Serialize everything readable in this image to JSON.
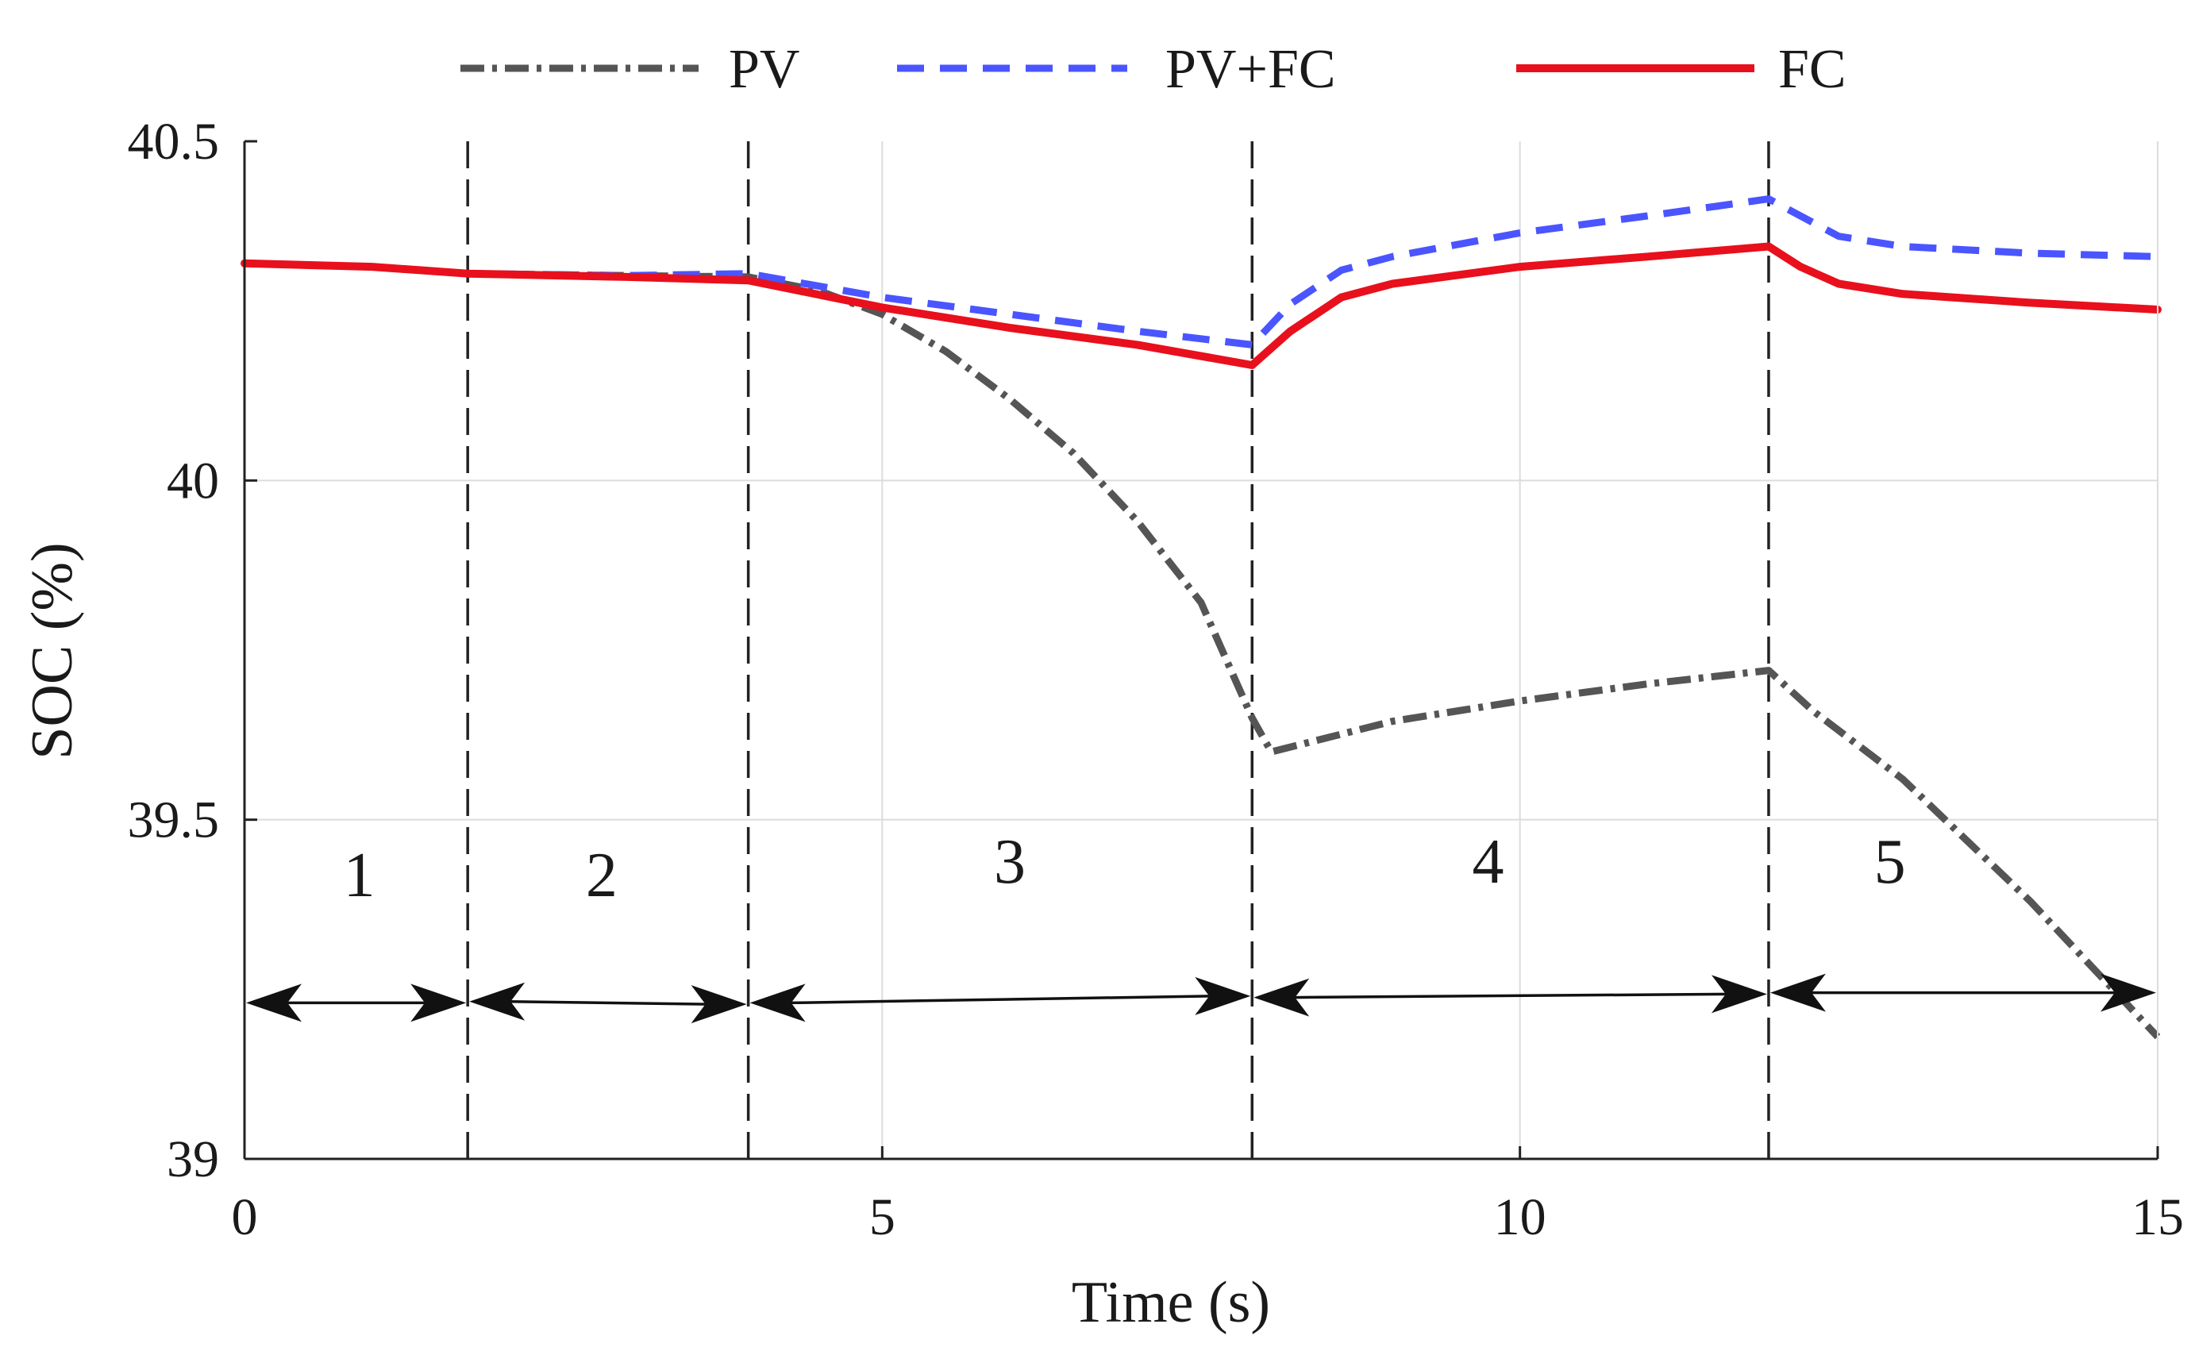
{
  "chart_data": {
    "type": "line",
    "title": "",
    "xlabel": "Time (s)",
    "ylabel": "SOC (%)",
    "xlim": [
      0,
      15
    ],
    "ylim": [
      39,
      40.5
    ],
    "xticks": [
      0,
      5,
      10,
      15
    ],
    "xtick_labels": [
      "0",
      "5",
      "10",
      "15"
    ],
    "yticks": [
      39,
      39.5,
      40,
      40.5
    ],
    "ytick_labels": [
      "39",
      "39.5",
      "40",
      "40.5"
    ],
    "grid": true,
    "legend_position": "top",
    "series": [
      {
        "name": "PV",
        "style": "dash-dot",
        "color": "#555555",
        "x": [
          0,
          1,
          1.75,
          3,
          3.95,
          4.5,
          5,
          5.5,
          6,
          6.5,
          7,
          7.5,
          7.9,
          8.05,
          9,
          10,
          11,
          11.95,
          12.3,
          13,
          14,
          15
        ],
        "y": [
          40.32,
          40.315,
          40.305,
          40.302,
          40.3,
          40.28,
          40.245,
          40.19,
          40.12,
          40.04,
          39.94,
          39.82,
          39.65,
          39.6,
          39.645,
          39.675,
          39.7,
          39.72,
          39.66,
          39.56,
          39.38,
          39.18
        ]
      },
      {
        "name": "PV+FC",
        "style": "dashed",
        "color": "#4a55ff",
        "x": [
          0,
          1,
          1.75,
          3,
          3.95,
          5,
          6,
          7,
          7.9,
          8.2,
          8.6,
          9,
          10,
          11,
          11.95,
          12.2,
          12.5,
          13,
          14,
          15
        ],
        "y": [
          40.32,
          40.315,
          40.305,
          40.302,
          40.305,
          40.27,
          40.245,
          40.22,
          40.2,
          40.26,
          40.31,
          40.33,
          40.365,
          40.39,
          40.415,
          40.39,
          40.36,
          40.345,
          40.335,
          40.33
        ]
      },
      {
        "name": "FC",
        "style": "solid",
        "color": "#e8101c",
        "x": [
          0,
          1,
          1.75,
          3,
          3.95,
          5,
          6,
          7,
          7.9,
          8.2,
          8.6,
          9,
          10,
          11,
          11.95,
          12.2,
          12.5,
          13,
          14,
          15
        ],
        "y": [
          40.32,
          40.315,
          40.305,
          40.3,
          40.295,
          40.255,
          40.225,
          40.2,
          40.17,
          40.22,
          40.27,
          40.29,
          40.315,
          40.33,
          40.345,
          40.315,
          40.29,
          40.275,
          40.262,
          40.252
        ]
      }
    ],
    "region_boundaries": [
      1.75,
      3.95,
      7.9,
      11.95
    ],
    "regions": [
      {
        "label": "1",
        "start": 0,
        "end": 1.75,
        "label_x": 0.9,
        "label_y": 39.42,
        "arrow_y_start": 39.23,
        "arrow_y_end": 39.23
      },
      {
        "label": "2",
        "start": 1.75,
        "end": 3.95,
        "label_x": 2.8,
        "label_y": 39.42,
        "arrow_y_start": 39.232,
        "arrow_y_end": 39.228
      },
      {
        "label": "3",
        "start": 3.95,
        "end": 7.9,
        "label_x": 6.0,
        "label_y": 39.44,
        "arrow_y_start": 39.23,
        "arrow_y_end": 39.24
      },
      {
        "label": "4",
        "start": 7.9,
        "end": 11.95,
        "label_x": 9.75,
        "label_y": 39.44,
        "arrow_y_start": 39.238,
        "arrow_y_end": 39.243
      },
      {
        "label": "5",
        "start": 11.95,
        "end": 15,
        "label_x": 12.9,
        "label_y": 39.44,
        "arrow_y_start": 39.245,
        "arrow_y_end": 39.245
      }
    ]
  }
}
